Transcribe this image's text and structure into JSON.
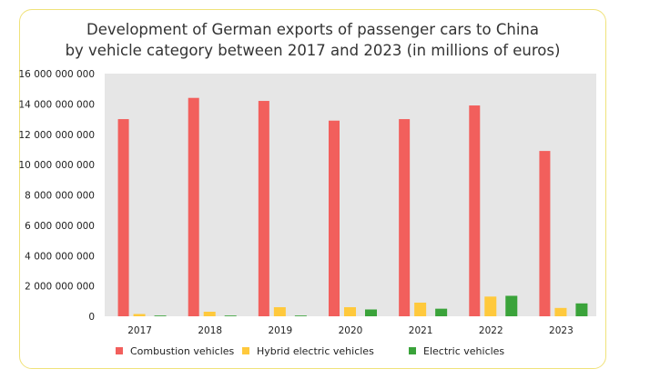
{
  "chart_data": {
    "type": "bar",
    "title_line1": "Development of German exports of passenger cars to China",
    "title_line2": "by vehicle category between 2017 and 2023 (in millions of euros)",
    "categories": [
      "2017",
      "2018",
      "2019",
      "2020",
      "2021",
      "2022",
      "2023"
    ],
    "series": [
      {
        "name": "Combustion vehicles",
        "color": "#f25f5c",
        "values": [
          13000000000,
          14400000000,
          14200000000,
          12900000000,
          13000000000,
          13900000000,
          10900000000
        ]
      },
      {
        "name": "Hybrid electric vehicles",
        "color": "#ffc93c",
        "values": [
          150000000,
          300000000,
          600000000,
          600000000,
          900000000,
          1300000000,
          550000000
        ]
      },
      {
        "name": "Electric vehicles",
        "color": "#3aa33a",
        "values": [
          50000000,
          50000000,
          50000000,
          450000000,
          500000000,
          1350000000,
          850000000
        ]
      }
    ],
    "ylim": [
      0,
      16000000000
    ],
    "yticks": [
      "0",
      "2 000 000 000",
      "4 000 000 000",
      "6 000 000 000",
      "8 000 000 000",
      "10 000 000 000",
      "12 000 000 000",
      "14 000 000 000",
      "16 000 000 000"
    ],
    "legend_placement": "bottom",
    "plot_background": "#e6e6e6"
  }
}
